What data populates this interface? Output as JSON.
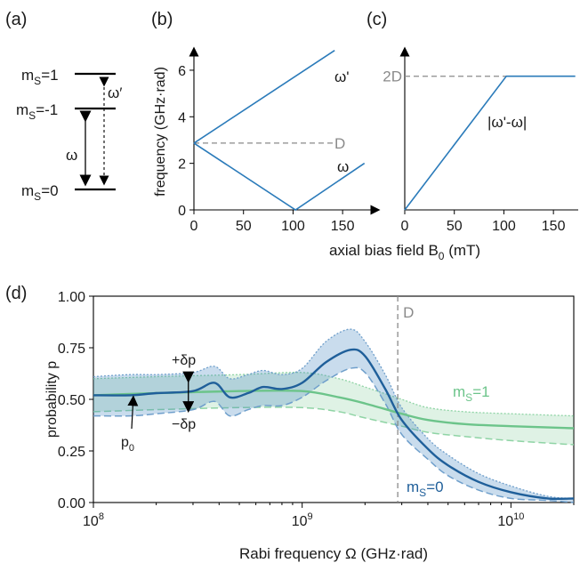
{
  "panel_labels": {
    "a": "(a)",
    "b": "(b)",
    "c": "(c)",
    "d": "(d)"
  },
  "panel_a": {
    "levels": [
      {
        "label": "m",
        "sub": "S",
        "eq": "=1"
      },
      {
        "label": "m",
        "sub": "S",
        "eq": "=-1"
      },
      {
        "label": "m",
        "sub": "S",
        "eq": "=0"
      }
    ],
    "omega": "ω",
    "omega_prime": "ω′"
  },
  "panel_b": {
    "ylabel": "frequency (GHz·rad)",
    "yticks": [
      "0",
      "2",
      "4",
      "6"
    ],
    "xticks": [
      "0",
      "50",
      "100",
      "150"
    ],
    "label_D": "D",
    "label_omega_prime": "ω'",
    "label_omega": "ω"
  },
  "panel_c": {
    "xticks": [
      "0",
      "50",
      "100",
      "150"
    ],
    "label_2D": "2D",
    "label_diff": "|ω'-ω|"
  },
  "shared_xlabel": "axial bias field B",
  "shared_xlabel_sub": "0",
  "shared_xlabel_unit": " (mT)",
  "panel_d": {
    "ylabel": "probability p",
    "yticks": [
      "0.00",
      "0.25",
      "0.50",
      "0.75",
      "1.00"
    ],
    "xticks": [
      {
        "base": "10",
        "exp": "8"
      },
      {
        "base": "10",
        "exp": "9"
      },
      {
        "base": "10",
        "exp": "10"
      }
    ],
    "xlabel": "Rabi frequency Ω (GHz·rad)",
    "label_D": "D",
    "label_plus": "+δp",
    "label_minus": "−δp",
    "label_p0": "p",
    "label_p0_sub": "0",
    "series_ms1": {
      "label": "m",
      "sub": "S",
      "eq": "=1"
    },
    "series_ms0": {
      "label": "m",
      "sub": "S",
      "eq": "=0"
    }
  },
  "colors": {
    "blue": "#2b7bba",
    "dark_blue": "#1f5f9a",
    "green": "#6cc48a",
    "gray": "#8a8a8a"
  },
  "chart_data": [
    {
      "type": "line",
      "panel": "b",
      "xlabel": "axial bias field B0 (mT)",
      "ylabel": "frequency (GHz·rad)",
      "xlim": [
        0,
        175
      ],
      "ylim": [
        0,
        6.8
      ],
      "series": [
        {
          "name": "ω'",
          "x": [
            0,
            142
          ],
          "y": [
            2.87,
            6.85
          ]
        },
        {
          "name": "ω",
          "x": [
            0,
            102.5,
            172
          ],
          "y": [
            2.87,
            0.0,
            2.0
          ]
        }
      ],
      "hline": {
        "label": "D",
        "y": 2.87,
        "x": [
          0,
          140
        ]
      }
    },
    {
      "type": "line",
      "panel": "c",
      "xlabel": "axial bias field B0 (mT)",
      "xlim": [
        0,
        175
      ],
      "ylim": [
        0,
        6.8
      ],
      "series": [
        {
          "name": "|ω'-ω|",
          "x": [
            0,
            102.5,
            172
          ],
          "y": [
            0,
            5.74,
            5.74
          ]
        }
      ],
      "hline": {
        "label": "2D",
        "y": 5.74
      }
    },
    {
      "type": "line",
      "panel": "d",
      "xlabel": "Rabi frequency Ω (GHz·rad)",
      "ylabel": "probability p",
      "xscale": "log",
      "xlim": [
        100000000.0,
        20000000000.0
      ],
      "ylim": [
        0,
        1
      ],
      "vline": {
        "label": "D",
        "x": 2870000000.0
      },
      "series": [
        {
          "name": "mS=1",
          "x": [
            100000000.0,
            200000000.0,
            500000000.0,
            1000000000.0,
            1500000000.0,
            2000000000.0,
            3000000000.0,
            4000000000.0,
            6000000000.0,
            10000000000.0,
            20000000000.0
          ],
          "y": [
            0.52,
            0.53,
            0.54,
            0.54,
            0.51,
            0.48,
            0.43,
            0.4,
            0.38,
            0.37,
            0.36
          ],
          "upper": [
            0.6,
            0.61,
            0.62,
            0.63,
            0.6,
            0.56,
            0.5,
            0.46,
            0.44,
            0.43,
            0.42
          ],
          "lower": [
            0.44,
            0.45,
            0.46,
            0.46,
            0.44,
            0.41,
            0.37,
            0.34,
            0.32,
            0.3,
            0.28
          ]
        },
        {
          "name": "mS=0",
          "x": [
            100000000.0,
            150000000.0,
            200000000.0,
            300000000.0,
            380000000.0,
            450000000.0,
            550000000.0,
            650000000.0,
            800000000.0,
            1000000000.0,
            1300000000.0,
            1700000000.0,
            2000000000.0,
            2500000000.0,
            3000000000.0,
            4000000000.0,
            5000000000.0,
            7000000000.0,
            10000000000.0,
            15000000000.0,
            20000000000.0
          ],
          "y": [
            0.52,
            0.52,
            0.53,
            0.54,
            0.58,
            0.51,
            0.53,
            0.56,
            0.55,
            0.58,
            0.68,
            0.74,
            0.71,
            0.55,
            0.4,
            0.26,
            0.18,
            0.1,
            0.05,
            0.02,
            0.02
          ],
          "upper": [
            0.61,
            0.62,
            0.62,
            0.63,
            0.66,
            0.6,
            0.62,
            0.64,
            0.62,
            0.65,
            0.78,
            0.84,
            0.78,
            0.62,
            0.46,
            0.31,
            0.23,
            0.14,
            0.08,
            0.03,
            0.02
          ],
          "lower": [
            0.42,
            0.42,
            0.43,
            0.45,
            0.49,
            0.42,
            0.45,
            0.47,
            0.47,
            0.51,
            0.59,
            0.65,
            0.63,
            0.48,
            0.33,
            0.21,
            0.13,
            0.06,
            0.02,
            0.01,
            0.0
          ]
        }
      ],
      "annotation": {
        "p0_y": 0.52,
        "plus_dp_y": 0.62,
        "minus_dp_y": 0.45
      }
    }
  ]
}
